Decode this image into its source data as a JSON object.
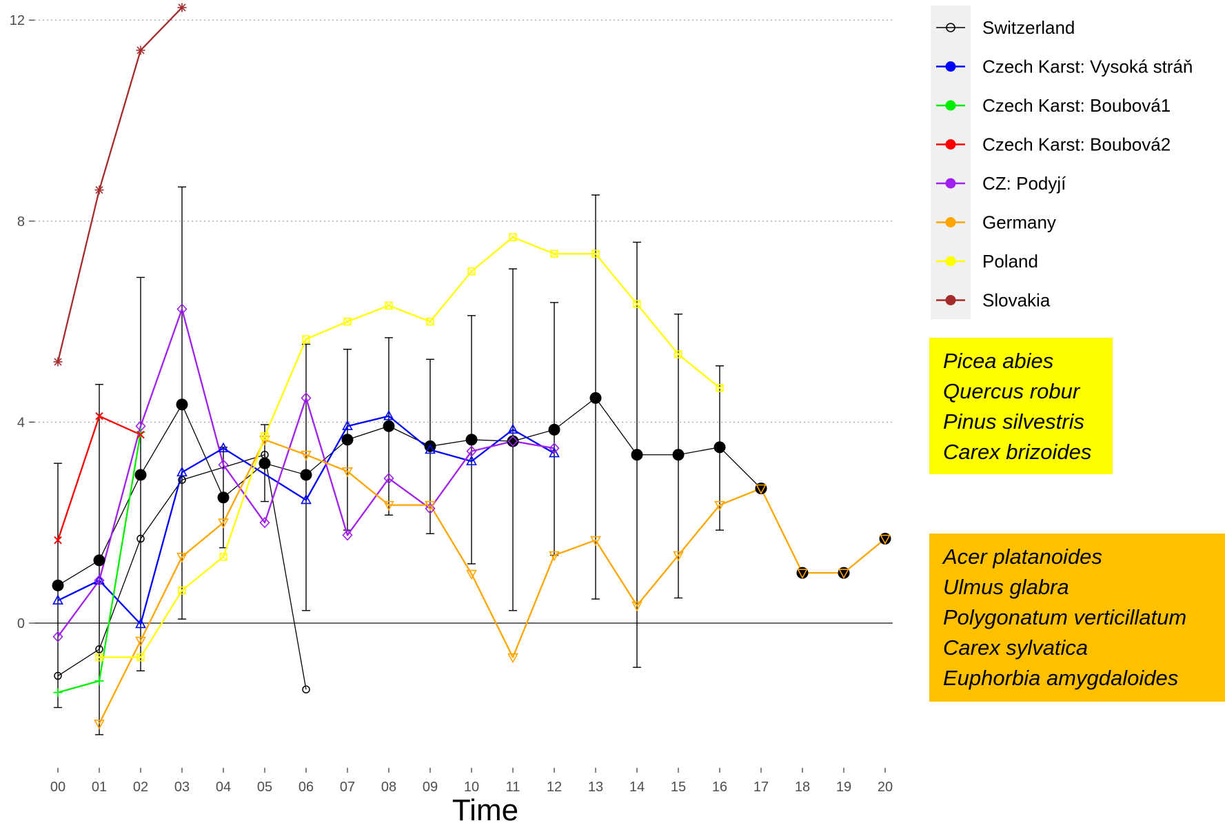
{
  "chart_data": {
    "type": "line",
    "xlabel": "Time",
    "ylabel": "",
    "categories": [
      "00",
      "01",
      "02",
      "03",
      "04",
      "05",
      "06",
      "07",
      "08",
      "09",
      "10",
      "11",
      "12",
      "13",
      "14",
      "15",
      "16",
      "17",
      "18",
      "19",
      "20"
    ],
    "yticks": [
      0,
      4,
      8,
      12
    ],
    "ylim": [
      -2.6,
      12.4
    ],
    "grid": "horizontal dotted at y-ticks",
    "legend_position": "right",
    "legend_background": "#f0f0f0",
    "series": [
      {
        "name": "Switzerland",
        "color": "#000000",
        "marker": "open-circle",
        "points": [
          [
            0,
            -1.05
          ],
          [
            1,
            -0.52
          ],
          [
            2,
            1.68
          ],
          [
            3,
            2.85
          ],
          [
            5,
            3.35
          ],
          [
            6,
            -1.32
          ]
        ]
      },
      {
        "name": "Czech Karst: Vysoká stráň",
        "color": "#0000ff",
        "marker": "open-triangle-up",
        "points": [
          [
            0,
            0.45
          ],
          [
            1,
            0.85
          ],
          [
            2,
            -0.02
          ],
          [
            3,
            3.0
          ],
          [
            4,
            3.48
          ],
          [
            6,
            2.45
          ],
          [
            7,
            3.92
          ],
          [
            8,
            4.12
          ],
          [
            9,
            3.45
          ],
          [
            10,
            3.22
          ],
          [
            11,
            3.85
          ],
          [
            12,
            3.38
          ]
        ]
      },
      {
        "name": "Czech Karst: Boubová1",
        "color": "#00ee00",
        "marker": "plus",
        "points": [
          [
            0,
            -1.38
          ],
          [
            1,
            -1.15
          ],
          [
            2,
            3.8
          ]
        ]
      },
      {
        "name": "Czech Karst: Boubová2",
        "color": "#ff0000",
        "marker": "cross",
        "points": [
          [
            0,
            1.65
          ],
          [
            1,
            4.12
          ],
          [
            2,
            3.75
          ]
        ]
      },
      {
        "name": "CZ: Podyjí",
        "color": "#a020f0",
        "marker": "open-diamond",
        "points": [
          [
            0,
            -0.27
          ],
          [
            1,
            0.85
          ],
          [
            2,
            3.92
          ],
          [
            3,
            6.25
          ],
          [
            4,
            3.15
          ],
          [
            5,
            2.0
          ],
          [
            6,
            4.48
          ],
          [
            7,
            1.75
          ],
          [
            8,
            2.88
          ],
          [
            9,
            2.28
          ],
          [
            10,
            3.42
          ],
          [
            11,
            3.62
          ],
          [
            12,
            3.48
          ]
        ]
      },
      {
        "name": "Germany",
        "color": "#ffa500",
        "marker": "open-triangle-down",
        "points": [
          [
            1,
            -2.0
          ],
          [
            2,
            -0.35
          ],
          [
            3,
            1.32
          ],
          [
            4,
            2.0
          ],
          [
            5,
            3.65
          ],
          [
            6,
            3.35
          ],
          [
            7,
            3.02
          ],
          [
            8,
            2.35
          ],
          [
            9,
            2.35
          ],
          [
            10,
            0.98
          ],
          [
            11,
            -0.68
          ],
          [
            12,
            1.35
          ],
          [
            13,
            1.65
          ],
          [
            14,
            0.35
          ],
          [
            15,
            1.35
          ],
          [
            16,
            2.35
          ],
          [
            17,
            2.68
          ],
          [
            18,
            1.0
          ],
          [
            19,
            1.0
          ],
          [
            20,
            1.68
          ]
        ]
      },
      {
        "name": "Poland",
        "color": "#ffff00",
        "marker": "open-square-x",
        "points": [
          [
            1,
            -0.68
          ],
          [
            2,
            -0.68
          ],
          [
            3,
            0.65
          ],
          [
            4,
            1.32
          ],
          [
            5,
            3.72
          ],
          [
            6,
            5.65
          ],
          [
            7,
            6.0
          ],
          [
            8,
            6.32
          ],
          [
            9,
            6.0
          ],
          [
            10,
            7.0
          ],
          [
            11,
            7.68
          ],
          [
            12,
            7.35
          ],
          [
            13,
            7.35
          ],
          [
            14,
            6.35
          ],
          [
            15,
            5.35
          ],
          [
            16,
            4.68
          ]
        ]
      },
      {
        "name": "Slovakia",
        "color": "#a52a2a",
        "marker": "asterisk",
        "points": [
          [
            0,
            5.2
          ],
          [
            1,
            8.62
          ],
          [
            2,
            11.4
          ],
          [
            3,
            12.25
          ]
        ]
      }
    ],
    "mean_series": {
      "color": "#000000",
      "marker": "filled-circle",
      "points": [
        [
          0,
          0.75
        ],
        [
          1,
          1.25
        ],
        [
          2,
          2.95
        ],
        [
          3,
          4.35
        ],
        [
          4,
          2.5
        ],
        [
          5,
          3.18
        ],
        [
          6,
          2.95
        ],
        [
          7,
          3.65
        ],
        [
          8,
          3.92
        ],
        [
          9,
          3.52
        ],
        [
          10,
          3.65
        ],
        [
          11,
          3.62
        ],
        [
          12,
          3.85
        ],
        [
          13,
          4.48
        ],
        [
          14,
          3.35
        ],
        [
          15,
          3.35
        ],
        [
          16,
          3.5
        ],
        [
          17,
          2.68
        ],
        [
          18,
          1.0
        ],
        [
          19,
          1.0
        ],
        [
          20,
          1.68
        ]
      ],
      "error_bars": [
        [
          0,
          -1.68,
          3.18
        ],
        [
          1,
          -2.22,
          4.75
        ],
        [
          2,
          -0.95,
          6.88
        ],
        [
          3,
          0.08,
          8.68
        ],
        [
          4,
          1.5,
          3.5
        ],
        [
          5,
          2.42,
          3.95
        ],
        [
          6,
          0.25,
          5.55
        ],
        [
          7,
          1.85,
          5.45
        ],
        [
          8,
          2.15,
          5.68
        ],
        [
          9,
          1.78,
          5.25
        ],
        [
          10,
          1.18,
          6.12
        ],
        [
          11,
          0.25,
          7.05
        ],
        [
          12,
          1.35,
          6.38
        ],
        [
          13,
          0.48,
          8.52
        ],
        [
          14,
          -0.88,
          7.58
        ],
        [
          15,
          0.5,
          6.15
        ],
        [
          16,
          1.85,
          5.12
        ]
      ]
    }
  },
  "species_boxes": {
    "yellow": {
      "color": "#ffff00",
      "items": [
        "Picea abies",
        "Quercus robur",
        "Pinus silvestris",
        "Carex brizoides"
      ]
    },
    "orange": {
      "color": "#ffc000",
      "items": [
        "Acer platanoides",
        "Ulmus glabra",
        "Polygonatum verticillatum",
        "Carex sylvatica",
        "Euphorbia amygdaloides"
      ]
    }
  }
}
